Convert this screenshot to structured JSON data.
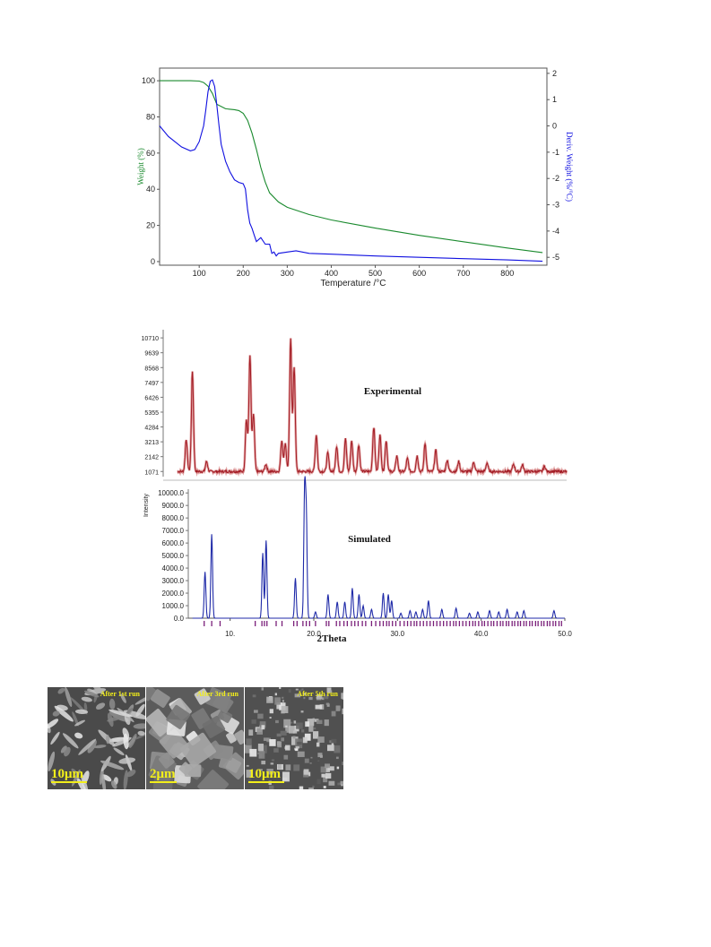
{
  "chart_data": [
    {
      "type": "line",
      "xlabel": "Temperature /°C",
      "ylabel": "Weight (%)",
      "y2label": "Deriv. Weight (%/°C)",
      "xlim": [
        10,
        890
      ],
      "ylim": [
        -2,
        107
      ],
      "y2lim": [
        -5.3,
        2.2
      ],
      "xticks": [
        "100",
        "200",
        "300",
        "400",
        "500",
        "600",
        "700",
        "800"
      ],
      "yticks": [
        "0",
        "20",
        "40",
        "60",
        "80",
        "100"
      ],
      "y2ticks": [
        "2",
        "1",
        "0",
        "-1",
        "-2",
        "-3",
        "-4",
        "-5"
      ],
      "colors": {
        "weight": "#1a8a2e",
        "deriv": "#1010e0"
      },
      "series": [
        {
          "axis": "left",
          "x": [
            10,
            50,
            80,
            100,
            110,
            120,
            130,
            140,
            160,
            180,
            190,
            200,
            210,
            220,
            230,
            240,
            250,
            260,
            280,
            300,
            350,
            400,
            500,
            600,
            700,
            800,
            880
          ],
          "values": [
            100,
            100,
            100,
            99.8,
            99,
            97,
            93,
            87,
            84.5,
            84,
            83.5,
            82,
            78,
            71,
            62,
            52,
            44,
            38,
            33,
            30,
            26,
            23,
            18.5,
            14.5,
            11,
            7.5,
            5
          ]
        },
        {
          "axis": "right",
          "x": [
            10,
            30,
            60,
            80,
            90,
            100,
            110,
            115,
            120,
            125,
            130,
            135,
            140,
            145,
            150,
            160,
            170,
            180,
            190,
            200,
            205,
            210,
            215,
            220,
            225,
            230,
            240,
            250,
            260,
            265,
            270,
            275,
            280,
            300,
            320,
            350,
            400,
            500,
            600,
            700,
            800,
            880
          ],
          "values": [
            0.0,
            -0.4,
            -0.8,
            -0.95,
            -0.9,
            -0.6,
            0.0,
            0.6,
            1.3,
            1.7,
            1.75,
            1.5,
            0.8,
            0.0,
            -0.7,
            -1.35,
            -1.75,
            -2.05,
            -2.15,
            -2.2,
            -2.4,
            -3.2,
            -3.7,
            -3.9,
            -4.15,
            -4.4,
            -4.25,
            -4.5,
            -4.5,
            -4.85,
            -4.8,
            -4.95,
            -4.85,
            -4.8,
            -4.75,
            -4.85,
            -4.88,
            -4.95,
            -5.0,
            -5.05,
            -5.1,
            -5.15
          ]
        }
      ]
    },
    {
      "type": "line",
      "title": "Experimental",
      "xlim": [
        5,
        50
      ],
      "ylim": [
        700,
        11300
      ],
      "yticks": [
        "10710",
        "9639",
        "8568",
        "7497",
        "6426",
        "5355",
        "4284",
        "3213",
        "2142",
        "1071"
      ],
      "color": "#a31c25",
      "baseline": 1071,
      "peaks": [
        {
          "x": 7.0,
          "h": 3400
        },
        {
          "x": 7.7,
          "h": 8300
        },
        {
          "x": 9.3,
          "h": 1800
        },
        {
          "x": 13.8,
          "h": 4800
        },
        {
          "x": 14.2,
          "h": 9400
        },
        {
          "x": 14.6,
          "h": 5200
        },
        {
          "x": 16.0,
          "h": 1600
        },
        {
          "x": 17.8,
          "h": 3300
        },
        {
          "x": 18.2,
          "h": 3100
        },
        {
          "x": 18.8,
          "h": 10600
        },
        {
          "x": 19.2,
          "h": 8600
        },
        {
          "x": 21.7,
          "h": 3700
        },
        {
          "x": 23.0,
          "h": 2400
        },
        {
          "x": 24.0,
          "h": 2900
        },
        {
          "x": 25.0,
          "h": 3400
        },
        {
          "x": 25.7,
          "h": 3300
        },
        {
          "x": 26.5,
          "h": 3000
        },
        {
          "x": 28.2,
          "h": 4300
        },
        {
          "x": 28.9,
          "h": 3700
        },
        {
          "x": 29.6,
          "h": 3300
        },
        {
          "x": 30.8,
          "h": 2200
        },
        {
          "x": 32.0,
          "h": 2000
        },
        {
          "x": 33.1,
          "h": 2200
        },
        {
          "x": 34.0,
          "h": 3100
        },
        {
          "x": 35.2,
          "h": 2600
        },
        {
          "x": 36.5,
          "h": 1900
        },
        {
          "x": 37.8,
          "h": 1800
        },
        {
          "x": 39.5,
          "h": 1750
        },
        {
          "x": 41.0,
          "h": 1700
        },
        {
          "x": 44.0,
          "h": 1600
        },
        {
          "x": 45.0,
          "h": 1550
        },
        {
          "x": 47.5,
          "h": 1450
        }
      ]
    },
    {
      "type": "line",
      "title": "Simulated",
      "xlabel": "2Theta",
      "ylabel": "Intensity",
      "xlim": [
        5,
        50
      ],
      "ylim": [
        0,
        10300
      ],
      "xticks": [
        "10.",
        "20.0",
        "30.0",
        "40.0",
        "50.0"
      ],
      "yticks": [
        "10000.0",
        "9000.0",
        "8000.0",
        "7000.0",
        "6000.0",
        "5000.0",
        "4000.0",
        "3000.0",
        "2000.0",
        "1000.0",
        "0.0"
      ],
      "color": "#1f2aa8",
      "tick_color": "#7a1f7a",
      "peaks": [
        {
          "x": 7.0,
          "h": 3700
        },
        {
          "x": 7.8,
          "h": 6700
        },
        {
          "x": 13.9,
          "h": 5200
        },
        {
          "x": 14.3,
          "h": 6200
        },
        {
          "x": 17.8,
          "h": 3200
        },
        {
          "x": 18.9,
          "h": 9900
        },
        {
          "x": 19.1,
          "h": 8000
        },
        {
          "x": 20.2,
          "h": 500
        },
        {
          "x": 21.7,
          "h": 1900
        },
        {
          "x": 22.8,
          "h": 1300
        },
        {
          "x": 23.7,
          "h": 1300
        },
        {
          "x": 24.6,
          "h": 2400
        },
        {
          "x": 25.4,
          "h": 1900
        },
        {
          "x": 25.9,
          "h": 1000
        },
        {
          "x": 26.9,
          "h": 700
        },
        {
          "x": 28.3,
          "h": 2000
        },
        {
          "x": 28.9,
          "h": 1900
        },
        {
          "x": 29.3,
          "h": 1400
        },
        {
          "x": 30.4,
          "h": 400
        },
        {
          "x": 31.5,
          "h": 600
        },
        {
          "x": 32.2,
          "h": 500
        },
        {
          "x": 33.0,
          "h": 700
        },
        {
          "x": 33.7,
          "h": 1400
        },
        {
          "x": 35.3,
          "h": 700
        },
        {
          "x": 37.0,
          "h": 800
        },
        {
          "x": 38.6,
          "h": 400
        },
        {
          "x": 39.6,
          "h": 500
        },
        {
          "x": 41.0,
          "h": 600
        },
        {
          "x": 42.1,
          "h": 500
        },
        {
          "x": 43.1,
          "h": 700
        },
        {
          "x": 44.3,
          "h": 500
        },
        {
          "x": 45.1,
          "h": 600
        },
        {
          "x": 48.7,
          "h": 600
        }
      ],
      "reflections": [
        6.9,
        7.8,
        8.8,
        13.0,
        13.8,
        14.1,
        14.4,
        15.5,
        16.2,
        17.6,
        18.0,
        18.7,
        19.1,
        19.5,
        20.2,
        21.5,
        21.8,
        22.7,
        23.1,
        23.6,
        24.0,
        24.5,
        24.9,
        25.3,
        25.8,
        26.2,
        26.9,
        27.4,
        27.9,
        28.3,
        28.7,
        29.0,
        29.4,
        29.8,
        30.3,
        30.8,
        31.2,
        31.6,
        32.0,
        32.3,
        32.7,
        33.1,
        33.5,
        33.9,
        34.3,
        34.7,
        35.1,
        35.5,
        35.9,
        36.3,
        36.7,
        37.0,
        37.4,
        37.8,
        38.2,
        38.6,
        39.0,
        39.3,
        39.7,
        40.1,
        40.4,
        40.8,
        41.2,
        41.5,
        41.9,
        42.3,
        42.6,
        43.0,
        43.3,
        43.7,
        44.0,
        44.4,
        44.7,
        45.1,
        45.4,
        45.8,
        46.1,
        46.5,
        46.8,
        47.2,
        47.5,
        47.9,
        48.2,
        48.6,
        48.9,
        49.3,
        49.6
      ]
    }
  ],
  "sem": {
    "panels": [
      {
        "label": "After 1st run",
        "scale": "10μm"
      },
      {
        "label": "After 3rd run",
        "scale": "2μm"
      },
      {
        "label": "After 5th run",
        "scale": "10μm"
      }
    ],
    "label_color": "#f2ee1a"
  }
}
